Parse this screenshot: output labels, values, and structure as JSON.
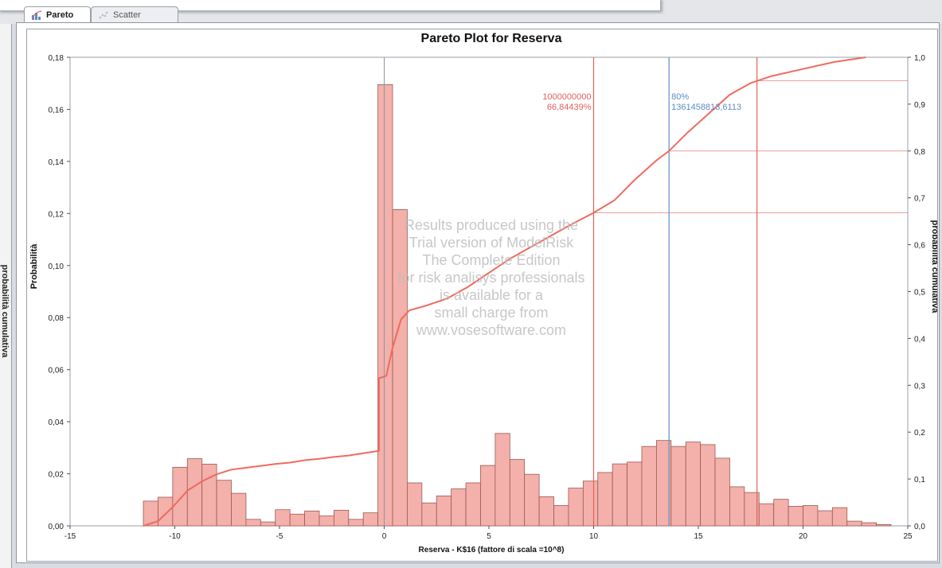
{
  "tabs": [
    {
      "label": "Pareto",
      "active": true,
      "icon": "pareto-chart-icon"
    },
    {
      "label": "Scatter",
      "active": false,
      "icon": "scatter-chart-icon"
    }
  ],
  "left_pane_label": "probabilità cumulativa",
  "watermark_lines": [
    "Results produced using the",
    "Trial version of  ModelRisk",
    "The Complete Edition",
    "for risk analisys professionals",
    "is available for a",
    "small charge from",
    "www.vosesoftware.com"
  ],
  "colors": {
    "bar_fill": "#f4b0aa",
    "bar_stroke": "#9a5a55",
    "cumulative_line": "#f06a5e",
    "marker_red": "#e0615c",
    "marker_blue": "#5b8ec4"
  },
  "chart_data": {
    "type": "bar",
    "title": "Pareto Plot for Reserva",
    "xlabel": "Reserva - K$16 (fattore di scala =10^8)",
    "ylabel": "Probabilità",
    "y2label": "probabilità cumulativa",
    "xlim": [
      -15,
      25
    ],
    "ylim": [
      0,
      0.18
    ],
    "y2lim": [
      0,
      1.0
    ],
    "x_ticks": [
      "-15",
      "-10",
      "-5",
      "0",
      "5",
      "10",
      "15",
      "20",
      "25"
    ],
    "y_ticks": [
      "0,00",
      "0,02",
      "0,04",
      "0,06",
      "0,08",
      "0,10",
      "0,12",
      "0,14",
      "0,16",
      "0,18"
    ],
    "y2_ticks": [
      "0,0",
      "0,1",
      "0,2",
      "0,3",
      "0,4",
      "0,5",
      "0,6",
      "0,7",
      "0,8",
      "0,9",
      "1,0"
    ],
    "bin_width": 0.7,
    "bins": [
      {
        "x": -11.5,
        "p": 0.0095
      },
      {
        "x": -10.8,
        "p": 0.011
      },
      {
        "x": -10.1,
        "p": 0.0225
      },
      {
        "x": -9.4,
        "p": 0.0258
      },
      {
        "x": -8.7,
        "p": 0.0237
      },
      {
        "x": -8.0,
        "p": 0.0175
      },
      {
        "x": -7.3,
        "p": 0.0125
      },
      {
        "x": -6.6,
        "p": 0.0025
      },
      {
        "x": -5.9,
        "p": 0.0015
      },
      {
        "x": -5.2,
        "p": 0.0062
      },
      {
        "x": -4.5,
        "p": 0.0045
      },
      {
        "x": -3.8,
        "p": 0.0057
      },
      {
        "x": -3.1,
        "p": 0.0038
      },
      {
        "x": -2.4,
        "p": 0.006
      },
      {
        "x": -1.7,
        "p": 0.0025
      },
      {
        "x": -1.0,
        "p": 0.005
      },
      {
        "x": -0.3,
        "p": 0.1695
      },
      {
        "x": 0.4,
        "p": 0.1215
      },
      {
        "x": 1.1,
        "p": 0.0165
      },
      {
        "x": 1.8,
        "p": 0.0088
      },
      {
        "x": 2.5,
        "p": 0.0115
      },
      {
        "x": 3.2,
        "p": 0.0142
      },
      {
        "x": 3.9,
        "p": 0.0165
      },
      {
        "x": 4.6,
        "p": 0.0232
      },
      {
        "x": 5.3,
        "p": 0.0355
      },
      {
        "x": 6.0,
        "p": 0.0255
      },
      {
        "x": 6.7,
        "p": 0.0198
      },
      {
        "x": 7.4,
        "p": 0.0112
      },
      {
        "x": 8.1,
        "p": 0.0078
      },
      {
        "x": 8.8,
        "p": 0.0145
      },
      {
        "x": 9.5,
        "p": 0.0172
      },
      {
        "x": 10.2,
        "p": 0.0205
      },
      {
        "x": 10.9,
        "p": 0.0238
      },
      {
        "x": 11.6,
        "p": 0.0245
      },
      {
        "x": 12.3,
        "p": 0.0305
      },
      {
        "x": 13.0,
        "p": 0.0328
      },
      {
        "x": 13.7,
        "p": 0.0305
      },
      {
        "x": 14.4,
        "p": 0.0322
      },
      {
        "x": 15.1,
        "p": 0.0312
      },
      {
        "x": 15.8,
        "p": 0.026
      },
      {
        "x": 16.5,
        "p": 0.015
      },
      {
        "x": 17.2,
        "p": 0.0128
      },
      {
        "x": 17.9,
        "p": 0.0085
      },
      {
        "x": 18.6,
        "p": 0.0102
      },
      {
        "x": 19.3,
        "p": 0.0075
      },
      {
        "x": 20.0,
        "p": 0.0078
      },
      {
        "x": 20.7,
        "p": 0.0058
      },
      {
        "x": 21.4,
        "p": 0.007
      },
      {
        "x": 22.1,
        "p": 0.0018
      },
      {
        "x": 22.8,
        "p": 0.0012
      },
      {
        "x": 23.5,
        "p": 0.0005
      }
    ],
    "cumulative": [
      {
        "x": -11.5,
        "y": 0.0
      },
      {
        "x": -10.8,
        "y": 0.01
      },
      {
        "x": -10.1,
        "y": 0.04
      },
      {
        "x": -9.4,
        "y": 0.075
      },
      {
        "x": -8.7,
        "y": 0.095
      },
      {
        "x": -8.0,
        "y": 0.11
      },
      {
        "x": -7.3,
        "y": 0.12
      },
      {
        "x": -6.6,
        "y": 0.124
      },
      {
        "x": -5.9,
        "y": 0.128
      },
      {
        "x": -5.2,
        "y": 0.132
      },
      {
        "x": -4.5,
        "y": 0.135
      },
      {
        "x": -3.8,
        "y": 0.14
      },
      {
        "x": -3.1,
        "y": 0.143
      },
      {
        "x": -2.4,
        "y": 0.147
      },
      {
        "x": -1.7,
        "y": 0.15
      },
      {
        "x": -1.0,
        "y": 0.155
      },
      {
        "x": -0.25,
        "y": 0.16
      },
      {
        "x": -0.25,
        "y": 0.315
      },
      {
        "x": 0.1,
        "y": 0.32
      },
      {
        "x": 0.4,
        "y": 0.38
      },
      {
        "x": 0.8,
        "y": 0.44
      },
      {
        "x": 1.2,
        "y": 0.46
      },
      {
        "x": 2.0,
        "y": 0.47
      },
      {
        "x": 3.0,
        "y": 0.485
      },
      {
        "x": 4.0,
        "y": 0.51
      },
      {
        "x": 5.0,
        "y": 0.54
      },
      {
        "x": 6.0,
        "y": 0.57
      },
      {
        "x": 7.0,
        "y": 0.595
      },
      {
        "x": 8.0,
        "y": 0.62
      },
      {
        "x": 9.0,
        "y": 0.645
      },
      {
        "x": 10.0,
        "y": 0.668
      },
      {
        "x": 11.0,
        "y": 0.695
      },
      {
        "x": 12.0,
        "y": 0.74
      },
      {
        "x": 13.0,
        "y": 0.78
      },
      {
        "x": 13.6,
        "y": 0.8
      },
      {
        "x": 14.5,
        "y": 0.84
      },
      {
        "x": 15.5,
        "y": 0.88
      },
      {
        "x": 16.5,
        "y": 0.92
      },
      {
        "x": 17.5,
        "y": 0.945
      },
      {
        "x": 18.5,
        "y": 0.96
      },
      {
        "x": 20.0,
        "y": 0.975
      },
      {
        "x": 21.5,
        "y": 0.99
      },
      {
        "x": 23.0,
        "y": 1.0
      }
    ],
    "markers": [
      {
        "x": 10.0,
        "cumulative": 0.668,
        "color": "red",
        "label_top": "1000000000",
        "label_bottom": "66,84439%"
      },
      {
        "x": 13.6,
        "cumulative": 0.8,
        "color": "blue",
        "label_top": "80%",
        "label_bottom": "1361458813,6113"
      },
      {
        "x": 17.8,
        "cumulative": 0.95,
        "color": "red",
        "label_top": "",
        "label_bottom": ""
      }
    ],
    "vertical_reference_x": 0.0,
    "grid": false
  }
}
